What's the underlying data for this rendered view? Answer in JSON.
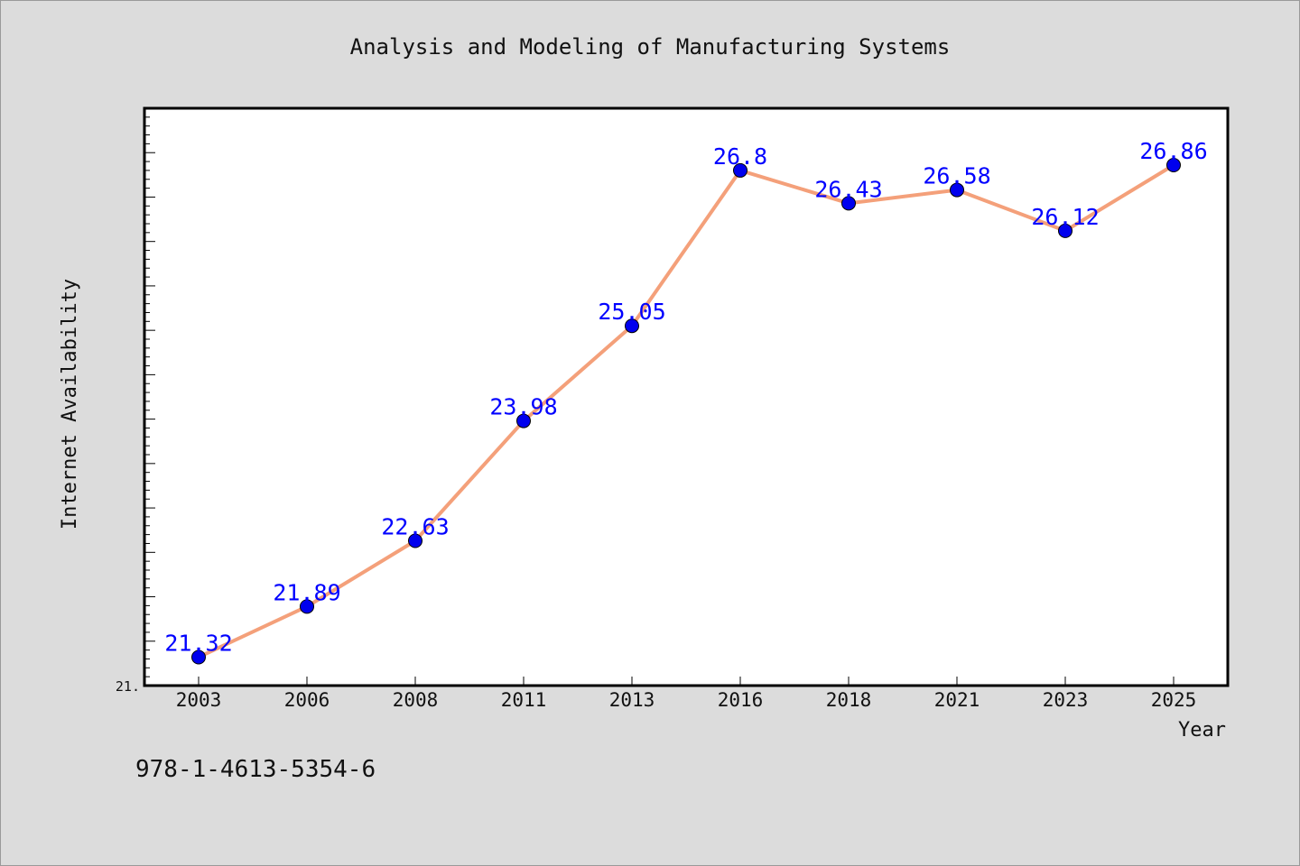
{
  "chart_data": {
    "type": "line",
    "title": "Analysis and Modeling of Manufacturing Systems",
    "xlabel": "Year",
    "ylabel": "Internet Availability",
    "categories": [
      "2003",
      "2006",
      "2008",
      "2011",
      "2013",
      "2016",
      "2018",
      "2021",
      "2023",
      "2025"
    ],
    "series": [
      {
        "values": [
          21.32,
          21.89,
          22.63,
          23.98,
          25.05,
          26.8,
          26.43,
          26.58,
          26.12,
          26.86
        ],
        "data_labels": [
          "21.32",
          "21.89",
          "22.63",
          "23.98",
          "25.05",
          "26.8",
          "26.43",
          "26.58",
          "26.12",
          "26.86"
        ]
      }
    ],
    "ylim": [
      21.0,
      27.5
    ],
    "y_tick_label": "21.",
    "grid": false,
    "colors": {
      "line": "#f4a07a",
      "marker": "#0000ee",
      "labels": "#0000ff",
      "background": "#dcdcdc",
      "plot_background": "#ffffff"
    }
  },
  "footer": {
    "isbn": "978-1-4613-5354-6"
  }
}
